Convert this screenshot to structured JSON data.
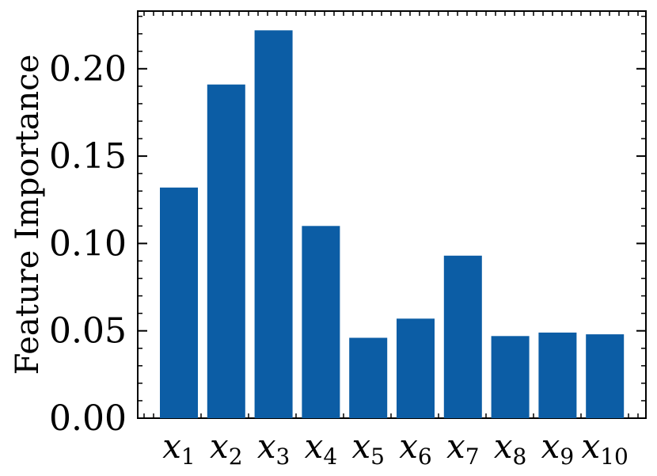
{
  "chart_data": {
    "type": "bar",
    "categories": [
      {
        "base": "x",
        "sub": "1"
      },
      {
        "base": "x",
        "sub": "2"
      },
      {
        "base": "x",
        "sub": "3"
      },
      {
        "base": "x",
        "sub": "4"
      },
      {
        "base": "x",
        "sub": "5"
      },
      {
        "base": "x",
        "sub": "6"
      },
      {
        "base": "x",
        "sub": "7"
      },
      {
        "base": "x",
        "sub": "8"
      },
      {
        "base": "x",
        "sub": "9"
      },
      {
        "base": "x",
        "sub": "10"
      }
    ],
    "values": [
      0.132,
      0.191,
      0.222,
      0.11,
      0.046,
      0.057,
      0.093,
      0.047,
      0.049,
      0.048
    ],
    "title": "",
    "xlabel": "",
    "ylabel": "Feature Importance",
    "ylim": [
      0,
      0.233
    ],
    "yticks": [
      "0.00",
      "0.05",
      "0.10",
      "0.15",
      "0.20"
    ],
    "bar_color": "#0c5da5",
    "grid": false,
    "legend": "none"
  }
}
